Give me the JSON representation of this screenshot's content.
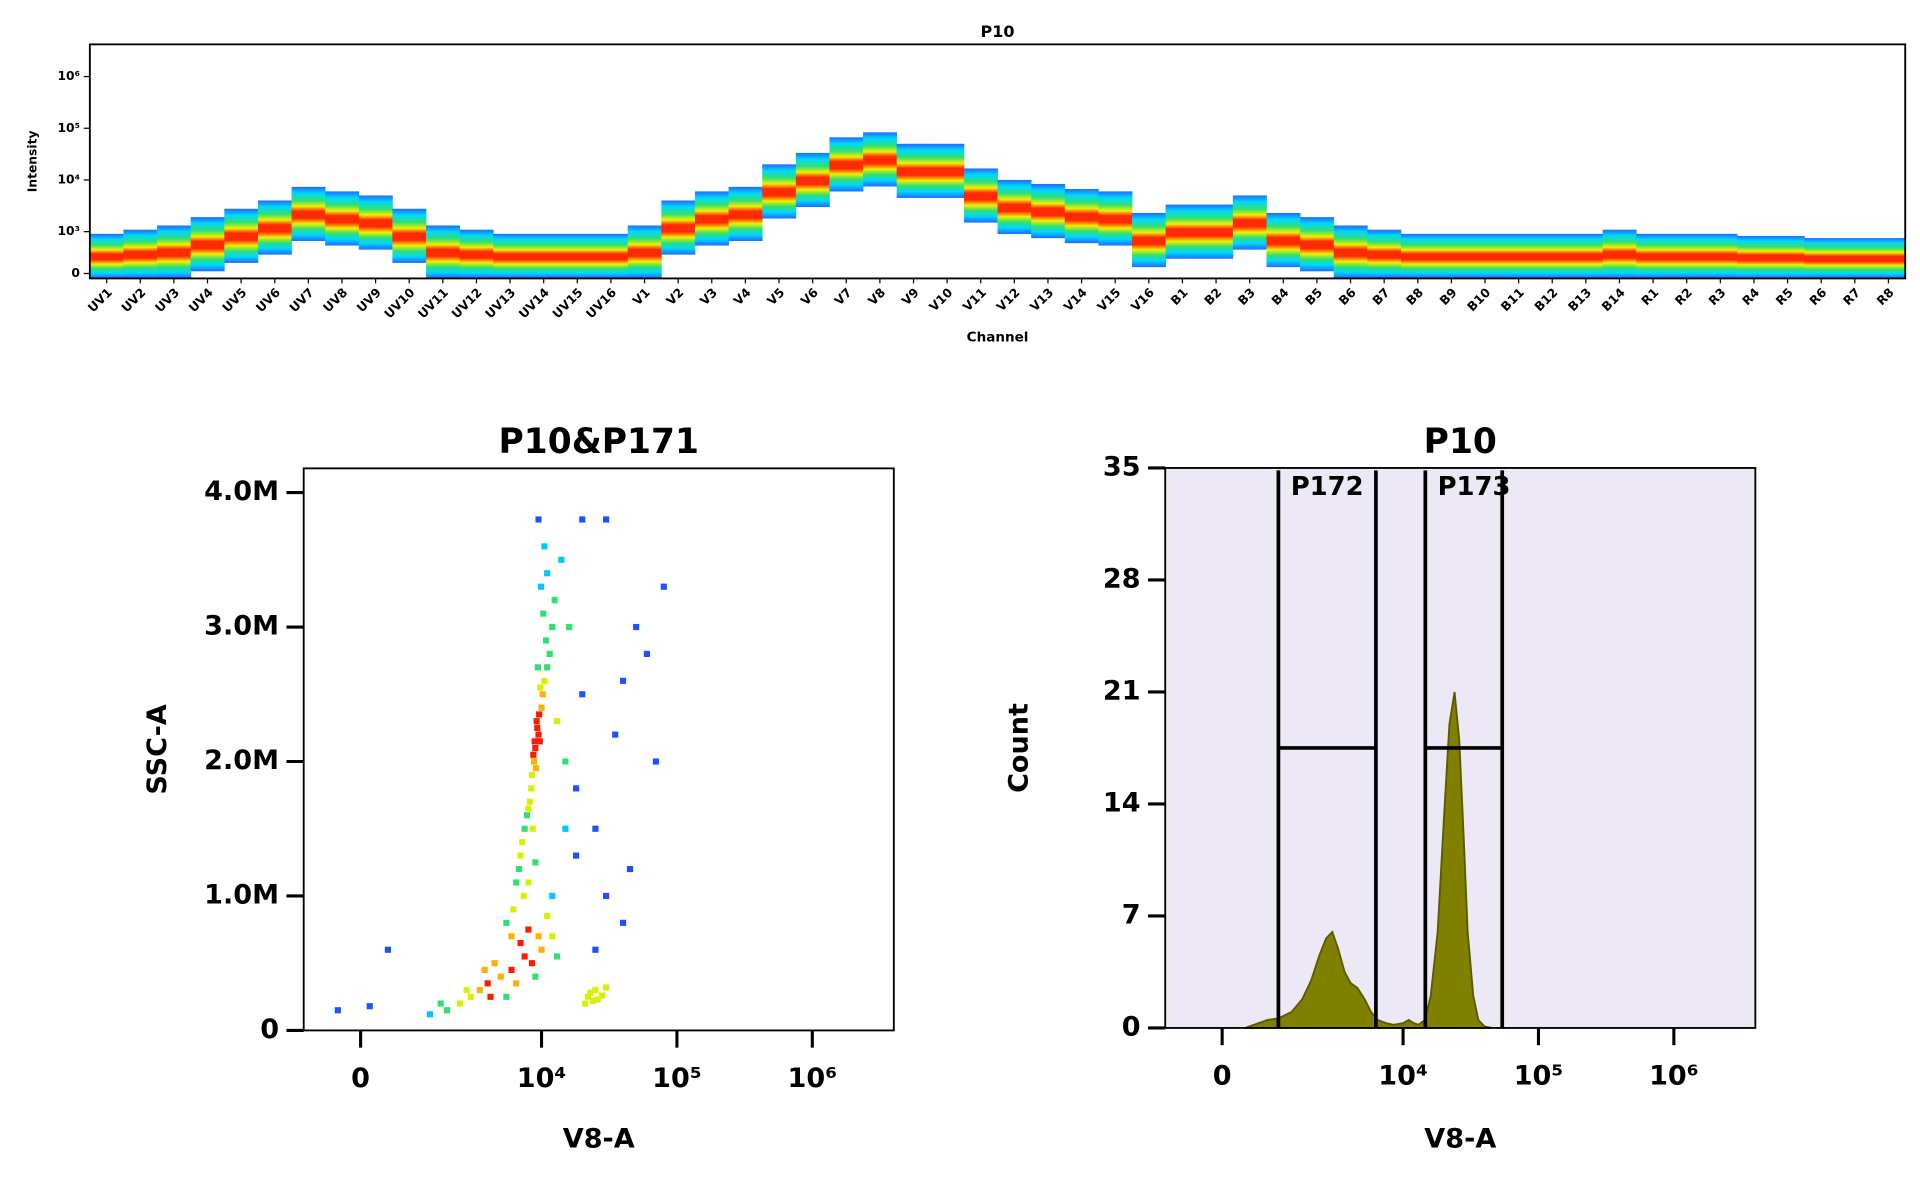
{
  "chart_data": [
    {
      "type": "ribbon",
      "title": "P10",
      "x_label": "Channel",
      "y_label": "Intensity",
      "scale": "biex",
      "categories": [
        "UV1",
        "UV2",
        "UV3",
        "UV4",
        "UV5",
        "UV6",
        "UV7",
        "UV8",
        "UV9",
        "UV10",
        "UV11",
        "UV12",
        "UV13",
        "UV14",
        "UV15",
        "UV16",
        "V1",
        "V2",
        "V3",
        "V4",
        "V5",
        "V6",
        "V7",
        "V8",
        "V9",
        "V10",
        "V11",
        "V12",
        "V13",
        "V14",
        "V15",
        "V16",
        "B1",
        "B2",
        "B3",
        "B4",
        "B5",
        "B6",
        "B7",
        "B8",
        "B9",
        "B10",
        "B11",
        "B12",
        "B13",
        "B14",
        "R1",
        "R2",
        "R3",
        "R4",
        "R5",
        "R6",
        "R7",
        "R8"
      ],
      "values": [
        300,
        400,
        500,
        700,
        900,
        1200,
        2200,
        1800,
        1500,
        900,
        500,
        400,
        300,
        300,
        300,
        300,
        500,
        1200,
        1800,
        2200,
        6000,
        10000,
        20000,
        25000,
        15000,
        15000,
        5000,
        3000,
        2500,
        2000,
        1800,
        800,
        1000,
        1000,
        1500,
        800,
        700,
        500,
        400,
        300,
        300,
        300,
        300,
        300,
        300,
        400,
        300,
        300,
        300,
        250,
        250,
        200,
        200,
        200
      ],
      "ylim": [
        0,
        4200000
      ],
      "yticks": [
        0,
        {
          "value": 1000,
          "label": "10³"
        },
        {
          "value": 10000,
          "label": "10⁴"
        },
        {
          "value": 100000,
          "label": "10⁵"
        },
        {
          "value": 1000000,
          "label": "10⁶"
        }
      ]
    },
    {
      "type": "scatter",
      "title": "P10&P171",
      "x_label": "V8-A",
      "y_label": "SSC-A",
      "x_scale": "biex",
      "x": [
        9000,
        9500,
        8800,
        9200,
        8500,
        10000,
        9700,
        8700,
        9100,
        9300,
        8900,
        9600,
        8400,
        10200,
        8200,
        7800,
        7500,
        10500,
        11000,
        9800,
        8000,
        7200,
        7000,
        11500,
        10800,
        9400,
        8600,
        12000,
        10300,
        9900,
        11000,
        10500,
        9500,
        12500,
        6800,
        6500,
        7400,
        6200,
        8000,
        9000,
        5500,
        6000,
        7000,
        8000,
        9500,
        11000,
        10000,
        4500,
        5000,
        4000,
        3500,
        3000,
        2500,
        6000,
        7500,
        3800,
        4200,
        2800,
        2000,
        1800,
        1500,
        5500,
        6500,
        8500,
        12000,
        13000,
        9000,
        22000,
        24000,
        23000,
        26000,
        25000,
        28000,
        21000,
        30000,
        15000,
        18000,
        20000,
        25000,
        35000,
        40000,
        50000,
        60000,
        80000,
        70000,
        45000,
        30000,
        16000,
        14000,
        20000,
        30000,
        12000,
        18000,
        25000,
        40000,
        600,
        -500,
        200,
        15000,
        13000
      ],
      "y": [
        2100000,
        2200000,
        2000000,
        2300000,
        1900000,
        2400000,
        2150000,
        2050000,
        1950000,
        2250000,
        2150000,
        2350000,
        1800000,
        2500000,
        1700000,
        1600000,
        1500000,
        2600000,
        2700000,
        2550000,
        1650000,
        1400000,
        1300000,
        2800000,
        2900000,
        2700000,
        1500000,
        3000000,
        3100000,
        3300000,
        3400000,
        3600000,
        3800000,
        3200000,
        1200000,
        1100000,
        1000000,
        900000,
        1100000,
        1250000,
        800000,
        700000,
        650000,
        750000,
        700000,
        850000,
        600000,
        500000,
        400000,
        350000,
        300000,
        250000,
        200000,
        450000,
        550000,
        450000,
        250000,
        300000,
        150000,
        200000,
        120000,
        250000,
        350000,
        500000,
        700000,
        550000,
        400000,
        250000,
        220000,
        280000,
        230000,
        300000,
        260000,
        200000,
        320000,
        2000000,
        1800000,
        2500000,
        1500000,
        2200000,
        2600000,
        3000000,
        2800000,
        3300000,
        2000000,
        1200000,
        1000000,
        3000000,
        3500000,
        3800000,
        3800000,
        1000000,
        1300000,
        600000,
        800000,
        600000,
        150000,
        180000,
        1500000,
        2300000
      ],
      "xlim": [
        -1250,
        4000000
      ],
      "ylim": [
        0,
        4180000
      ],
      "xticks": [
        0,
        {
          "value": 10000,
          "label": "10⁴"
        },
        {
          "value": 100000,
          "label": "10⁵"
        },
        {
          "value": 1000000,
          "label": "10⁶"
        }
      ],
      "yticks": [
        0,
        {
          "value": 1000000,
          "label": "1.0M"
        },
        {
          "value": 2000000,
          "label": "2.0M"
        },
        {
          "value": 3000000,
          "label": "3.0M"
        },
        {
          "value": 4000000,
          "label": "4.0M"
        }
      ]
    },
    {
      "type": "area",
      "title": "P10",
      "x_label": "V8-A",
      "y_label": "Count",
      "x_scale": "biex",
      "color": "#808000",
      "background": "#ece8f5",
      "x": [
        500,
        800,
        1000,
        1200,
        1500,
        1800,
        2100,
        2400,
        2700,
        3000,
        3300,
        3700,
        4100,
        4600,
        5200,
        5800,
        6500,
        7500,
        8500,
        10000,
        11000,
        12000,
        13000,
        14500,
        16000,
        18000,
        20000,
        22000,
        24000,
        26000,
        28000,
        30000,
        33000,
        36000,
        40000,
        45000
      ],
      "values": [
        0,
        0.3,
        0.5,
        0.6,
        1,
        1.8,
        3,
        4.5,
        5.6,
        6,
        5,
        3.5,
        2.8,
        2.5,
        1.8,
        1,
        0.5,
        0.3,
        0.2,
        0.3,
        0.5,
        0.3,
        0.2,
        0.5,
        2,
        6,
        13,
        19,
        21,
        18,
        12,
        6,
        2,
        0.5,
        0.1,
        0
      ],
      "gates": [
        {
          "name": "P172",
          "x": [
            1200,
            6300
          ],
          "y": 17.5
        },
        {
          "name": "P173",
          "x": [
            14600,
            54000
          ],
          "y": 17.5
        }
      ],
      "xlim": [
        -1250,
        4000000
      ],
      "ylim": [
        0,
        35
      ],
      "xticks": [
        0,
        {
          "value": 10000,
          "label": "10⁴"
        },
        {
          "value": 100000,
          "label": "10⁵"
        },
        {
          "value": 1000000,
          "label": "10⁶"
        }
      ],
      "yticks": [
        0,
        7,
        14,
        21,
        28,
        35
      ]
    }
  ]
}
